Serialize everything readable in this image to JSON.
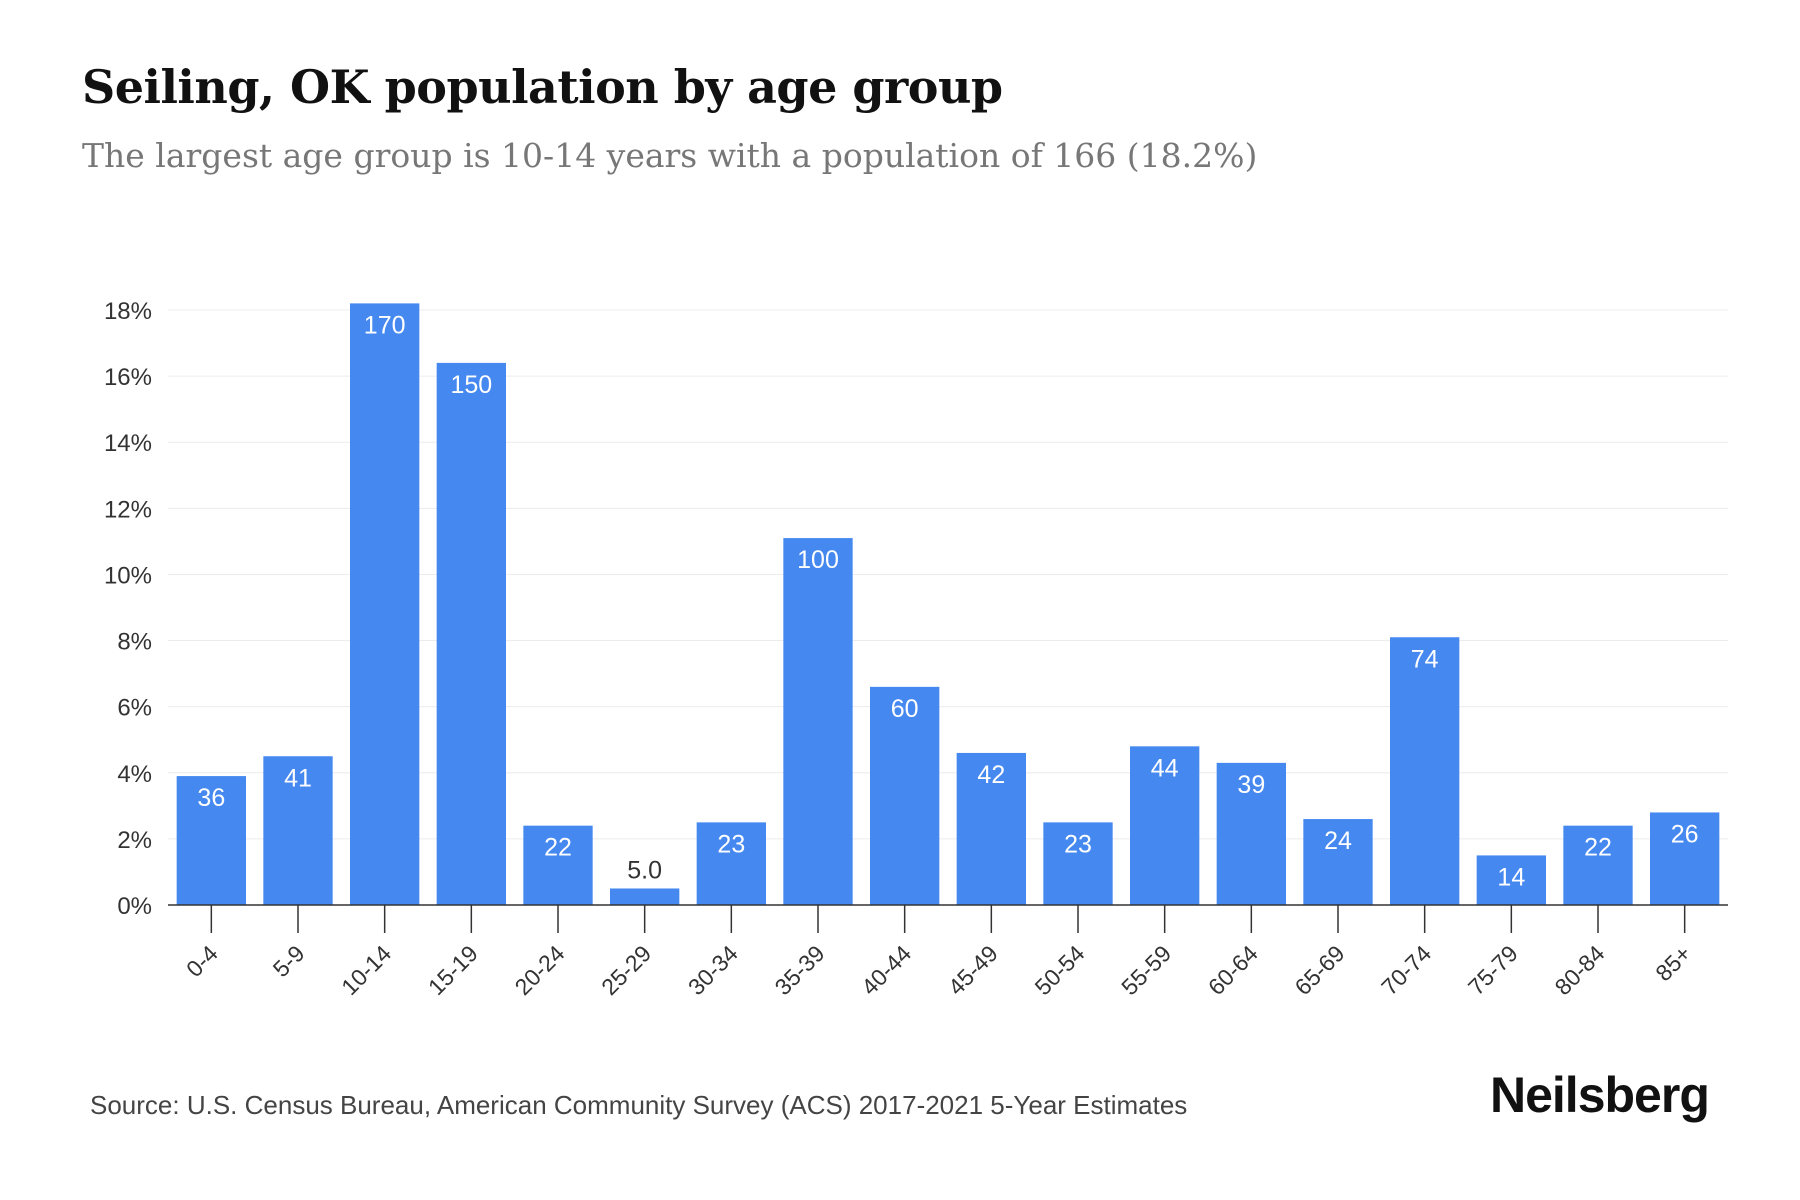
{
  "header": {
    "title": "Seiling, OK population by age group",
    "subtitle": "The largest age group is 10-14 years with a population of 166 (18.2%)"
  },
  "footer": {
    "source": "Source: U.S. Census Bureau, American Community Survey (ACS) 2017-2021 5-Year Estimates",
    "brand": "Neilsberg"
  },
  "colors": {
    "bar": "#4588f0",
    "grid": "#ececec",
    "axis": "#333333",
    "bar_label": "#ffffff",
    "bar_label_outside": "#333333"
  },
  "chart_data": {
    "type": "bar",
    "title": "Seiling, OK population by age group",
    "subtitle": "The largest age group is 10-14 years with a population of 166 (18.2%)",
    "categories": [
      "0-4",
      "5-9",
      "10-14",
      "15-19",
      "20-24",
      "25-29",
      "30-34",
      "35-39",
      "40-44",
      "45-49",
      "50-54",
      "55-59",
      "60-64",
      "65-69",
      "70-74",
      "75-79",
      "80-84",
      "85+"
    ],
    "values_percent": [
      3.9,
      4.5,
      18.2,
      16.4,
      2.4,
      0.5,
      2.5,
      11.1,
      6.6,
      4.6,
      2.5,
      4.8,
      4.3,
      2.6,
      8.1,
      1.5,
      2.4,
      2.8
    ],
    "data_labels": [
      "36",
      "41",
      "170",
      "150",
      "22",
      "5.0",
      "23",
      "100",
      "60",
      "42",
      "23",
      "44",
      "39",
      "24",
      "74",
      "14",
      "22",
      "26"
    ],
    "ylim": [
      0,
      18
    ],
    "yticks": [
      0,
      2,
      4,
      6,
      8,
      10,
      12,
      14,
      16,
      18
    ],
    "ytick_labels": [
      "0%",
      "2%",
      "4%",
      "6%",
      "8%",
      "10%",
      "12%",
      "14%",
      "16%",
      "18%"
    ],
    "xlabel": "",
    "ylabel": "",
    "grid": true,
    "legend": "none"
  }
}
